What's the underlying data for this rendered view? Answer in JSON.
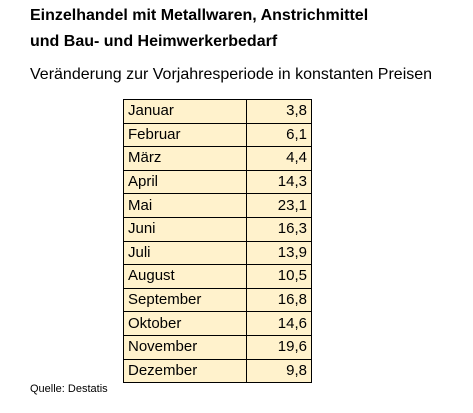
{
  "header": {
    "title_line1": "Einzelhandel mit Metallwaren, Anstrichmittel",
    "title_line2": "und Bau- und Heimwerkerbedarf",
    "subtitle": "Veränderung zur Vorjahresperiode in konstanten Preisen"
  },
  "table": {
    "rows": [
      [
        "Januar",
        "3,8"
      ],
      [
        "Februar",
        "6,1"
      ],
      [
        "März",
        "4,4"
      ],
      [
        "April",
        "14,3"
      ],
      [
        "Mai",
        "23,1"
      ],
      [
        "Juni",
        "16,3"
      ],
      [
        "Juli",
        "13,9"
      ],
      [
        "August",
        "10,5"
      ],
      [
        "September",
        "16,8"
      ],
      [
        "Oktober",
        "14,6"
      ],
      [
        "November",
        "19,6"
      ],
      [
        "Dezember",
        "9,8"
      ]
    ]
  },
  "source": "Quelle: Destatis"
}
